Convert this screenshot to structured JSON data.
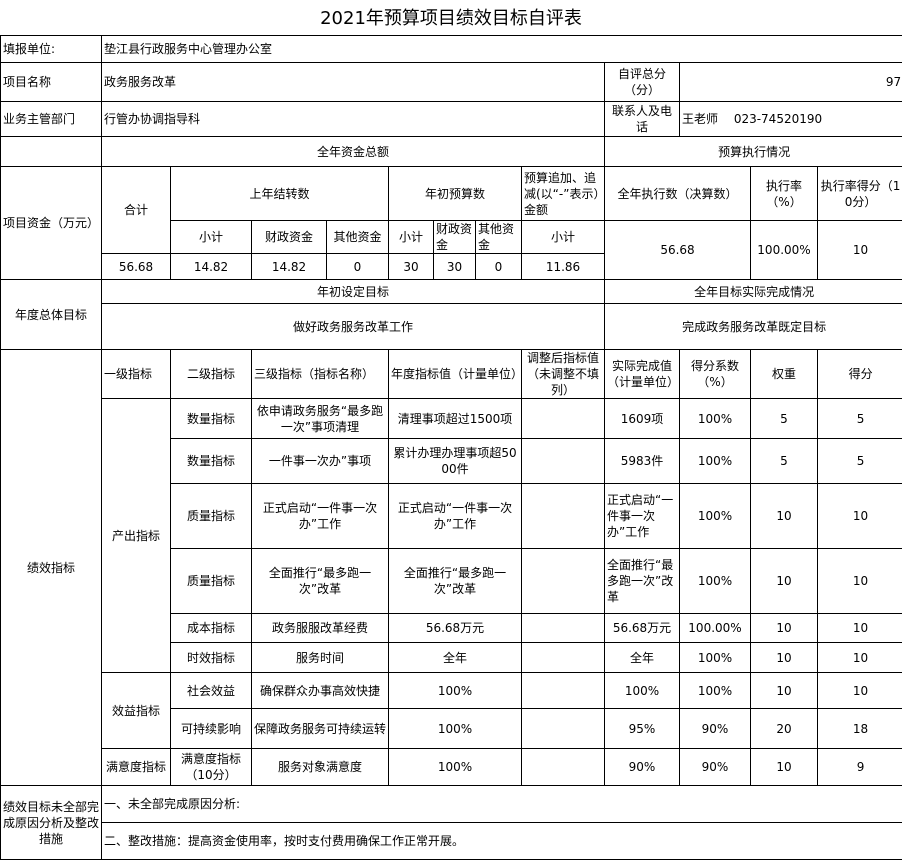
{
  "title": "2021年预算项目绩效目标自评表",
  "info": {
    "unit_label": "填报单位:",
    "unit_value": "垫江县行政服务中心管理办公室",
    "project_label": "项目名称",
    "project_value": "政务服务改革",
    "score_label": "自评总分（分）",
    "score_value": "97",
    "dept_label": "业务主管部门",
    "dept_value": "行管办协调指导科",
    "contact_label": "联系人及电话",
    "contact_value": "王老师　 023-74520190"
  },
  "funds": {
    "total_header": "全年资金总额",
    "exec_header": "预算执行情况",
    "row_label": "项目资金（万元）",
    "total_label": "合计",
    "carryover_label": "上年结转数",
    "initial_label": "年初预算数",
    "adjust_label": "预算追加、追减(以“-”表示）金额",
    "exec_amount_label": "全年执行数（决算数）",
    "exec_rate_label": "执行率（%）",
    "exec_score_label": "执行率得分（10分）",
    "sub_subtotal": "小计",
    "sub_fiscal": "财政资金",
    "sub_other": "其他资金",
    "sub_fiscal_short": "财政资金",
    "sub_other_short": "其他资金",
    "values": {
      "total": "56.68",
      "carry_subtotal": "14.82",
      "carry_fiscal": "14.82",
      "carry_other": "0",
      "init_subtotal": "30",
      "init_fiscal": "30",
      "init_other": "0",
      "adjust_subtotal": "11.86",
      "exec_amount": "56.68",
      "exec_rate": "100.00%",
      "exec_score": "10"
    }
  },
  "goals": {
    "row_label": "年度总体目标",
    "set_header": "年初设定目标",
    "actual_header": "全年目标实际完成情况",
    "set_value": "做好政务服务改革工作",
    "actual_value": "完成政务服务改革既定目标"
  },
  "indicators": {
    "row_label": "绩效指标",
    "headers": [
      "一级指标",
      "二级指标",
      "三级指标（指标名称）",
      "年度指标值（计量单位）",
      "调整后指标值（未调整不填列）",
      "实际完成值（计量单位）",
      "得分系数（%）",
      "权重",
      "得分"
    ],
    "groups": [
      "产出指标",
      "效益指标",
      "满意度指标"
    ],
    "rows": [
      {
        "level2": "数量指标",
        "name": "依申请政务服务“最多跑一次”事项清理",
        "target": "清理事项超过1500项",
        "adjusted": "",
        "actual": "1609项",
        "coef": "100%",
        "weight": "5",
        "score": "5"
      },
      {
        "level2": "数量指标",
        "name": "一件事一次办”事项",
        "target": "累计办理办理事项超5000件",
        "adjusted": "",
        "actual": "5983件",
        "coef": "100%",
        "weight": "5",
        "score": "5"
      },
      {
        "level2": "质量指标",
        "name": "正式启动“一件事一次办”工作",
        "target": "正式启动“一件事一次办”工作",
        "adjusted": "",
        "actual": "正式启动“一件事一次办”工作",
        "coef": "100%",
        "weight": "10",
        "score": "10"
      },
      {
        "level2": "质量指标",
        "name": "全面推行“最多跑一次”改革",
        "target": "全面推行“最多跑一次”改革",
        "adjusted": "",
        "actual": "全面推行“最多跑一次”改革",
        "coef": "100%",
        "weight": "10",
        "score": "10"
      },
      {
        "level2": "成本指标",
        "name": "政务服服改革经费",
        "target": "56.68万元",
        "adjusted": "",
        "actual": "56.68万元",
        "coef": "100.00%",
        "weight": "10",
        "score": "10"
      },
      {
        "level2": "时效指标",
        "name": "服务时间",
        "target": "全年",
        "adjusted": "",
        "actual": "全年",
        "coef": "100%",
        "weight": "10",
        "score": "10"
      },
      {
        "level2": "社会效益",
        "name": "确保群众办事高效快捷",
        "target": "100%",
        "adjusted": "",
        "actual": "100%",
        "coef": "100%",
        "weight": "10",
        "score": "10"
      },
      {
        "level2": "可持续影响",
        "name": "保障政务服务可持续运转",
        "target": "100%",
        "adjusted": "",
        "actual": "95%",
        "coef": "90%",
        "weight": "20",
        "score": "18"
      },
      {
        "level2": "满意度指标（10分）",
        "name": "服务对象满意度",
        "target": "100%",
        "adjusted": "",
        "actual": "90%",
        "coef": "90%",
        "weight": "10",
        "score": "9"
      }
    ]
  },
  "analysis": {
    "row_label": "绩效目标未全部完成原因分析及整改措施",
    "reason": "一、未全部完成原因分析:",
    "measures": "二、整改措施：提高资金使用率，按时支付费用确保工作正常开展。"
  }
}
